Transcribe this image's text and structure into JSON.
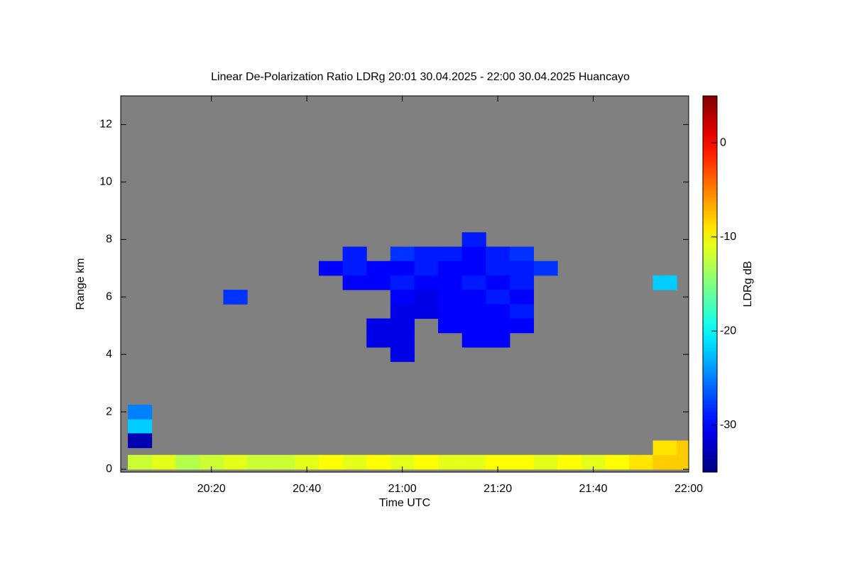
{
  "chart_data": {
    "type": "heatmap",
    "title": "Linear De-Polarization Ratio LDRg   20:01 30.04.2025 - 22:00 30.04.2025 Huancayo",
    "xlabel": "Time UTC",
    "ylabel": "Range km",
    "colorbar_label": "LDRg dB",
    "colormap": "jet",
    "background": "#808080",
    "xlim": [
      1201,
      1320
    ],
    "ylim": [
      -0.1,
      13
    ],
    "clim": [
      -35,
      5
    ],
    "xticks": [
      {
        "value": 1220,
        "label": "20:20"
      },
      {
        "value": 1240,
        "label": "20:40"
      },
      {
        "value": 1260,
        "label": "21:00"
      },
      {
        "value": 1280,
        "label": "21:20"
      },
      {
        "value": 1300,
        "label": "21:40"
      },
      {
        "value": 1320,
        "label": "22:00"
      }
    ],
    "yticks": [
      0,
      2,
      4,
      6,
      8,
      10,
      12
    ],
    "cticks": [
      -30,
      -20,
      -10,
      0
    ],
    "x": [
      1275,
      1250,
      1260,
      1265,
      1270,
      1275,
      1280,
      1285,
      1245,
      1250,
      1255,
      1260,
      1265,
      1270,
      1275,
      1280,
      1285,
      1290,
      1250,
      1255,
      1260,
      1265,
      1270,
      1275,
      1280,
      1285,
      1260,
      1265,
      1270,
      1275,
      1280,
      1285,
      1260,
      1265,
      1270,
      1275,
      1280,
      1285,
      1255,
      1260,
      1270,
      1275,
      1280,
      1285,
      1255,
      1260,
      1275,
      1280,
      1260,
      1225,
      1315,
      1205,
      1205,
      1205,
      1205,
      1210,
      1215,
      1220,
      1225,
      1230,
      1235,
      1240,
      1245,
      1250,
      1255,
      1260,
      1265,
      1270,
      1275,
      1280,
      1285,
      1290,
      1295,
      1300,
      1305,
      1310,
      1315,
      1320,
      1315,
      1320
    ],
    "y": [
      8.0,
      7.5,
      7.5,
      7.5,
      7.5,
      7.5,
      7.5,
      7.5,
      7.0,
      7.0,
      7.0,
      7.0,
      7.0,
      7.0,
      7.0,
      7.0,
      7.0,
      7.0,
      6.5,
      6.5,
      6.5,
      6.5,
      6.5,
      6.5,
      6.5,
      6.5,
      6.0,
      6.0,
      6.0,
      6.0,
      6.0,
      6.0,
      5.5,
      5.5,
      5.5,
      5.5,
      5.5,
      5.5,
      5.0,
      5.0,
      5.0,
      5.0,
      5.0,
      5.0,
      4.5,
      4.5,
      4.5,
      4.5,
      4.0,
      6.0,
      6.5,
      1.5,
      1.0,
      2.0,
      0.25,
      0.25,
      0.25,
      0.25,
      0.25,
      0.25,
      0.25,
      0.25,
      0.25,
      0.25,
      0.25,
      0.25,
      0.25,
      0.25,
      0.25,
      0.25,
      0.25,
      0.25,
      0.25,
      0.25,
      0.25,
      0.25,
      0.25,
      0.25,
      0.75,
      0.75
    ],
    "values": [
      -29,
      -29,
      -28,
      -29,
      -29,
      -30,
      -29,
      -28,
      -30,
      -29,
      -30,
      -30,
      -29,
      -30,
      -30,
      -29,
      -29,
      -28,
      -30,
      -30,
      -29,
      -30,
      -30,
      -29,
      -30,
      -29,
      -30,
      -31,
      -30,
      -30,
      -29,
      -30,
      -31,
      -31,
      -30,
      -30,
      -30,
      -29,
      -31,
      -31,
      -30,
      -30,
      -30,
      -30,
      -31,
      -31,
      -30,
      -30,
      -31,
      -28,
      -22,
      -22,
      -33,
      -25,
      -12,
      -11,
      -13,
      -12,
      -11,
      -12,
      -12,
      -11,
      -10,
      -11,
      -10,
      -11,
      -10,
      -11,
      -11,
      -10,
      -10,
      -11,
      -10,
      -11,
      -10,
      -9,
      -8,
      -8,
      -9,
      -8
    ]
  }
}
